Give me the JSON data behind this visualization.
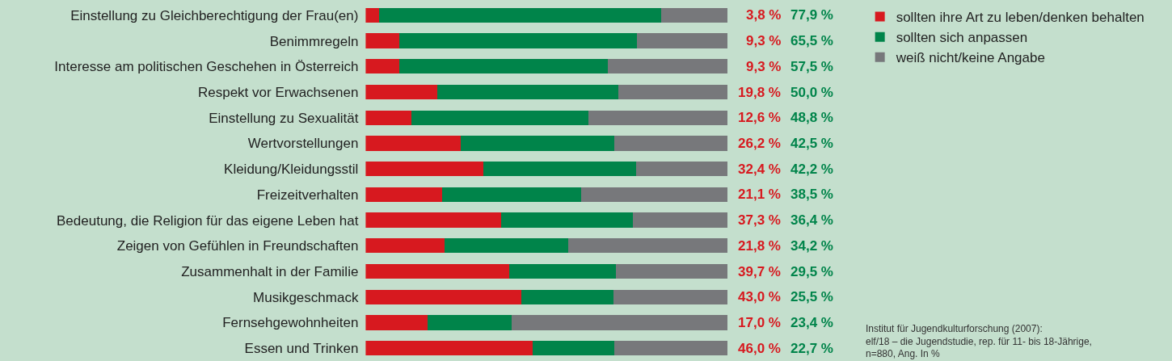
{
  "chart_data": {
    "type": "bar",
    "orientation": "horizontal",
    "stacked": true,
    "legend": "top right",
    "tick_labels": "y",
    "grid": false,
    "xlim": [
      0,
      100
    ],
    "categories": [
      "Einstellung zu Gleichberechtigung der Frau(en)",
      "Benimmregeln",
      "Interesse am politischen Geschehen in Österreich",
      "Respekt vor Erwachsenen",
      "Einstellung zu Sexualität",
      "Wertvorstellungen",
      "Kleidung/Kleidungsstil",
      "Freizeitverhalten",
      "Bedeutung, die Religion für das eigene Leben hat",
      "Zeigen von Gefühlen in Freundschaften",
      "Zusammenhalt in der Familie",
      "Musikgeschmack",
      "Fernsehgewohnheiten",
      "Essen und Trinken"
    ],
    "series": [
      {
        "name": "sollten ihre Art zu leben/denken behalten",
        "color": "#d7191f",
        "values": [
          3.8,
          9.3,
          9.3,
          19.8,
          12.6,
          26.2,
          32.4,
          21.1,
          37.3,
          21.8,
          39.7,
          43.0,
          17.0,
          46.0
        ],
        "value_labels": [
          "3,8 %",
          "9,3 %",
          "9,3 %",
          "19,8 %",
          "12,6 %",
          "26,2 %",
          "32,4 %",
          "21,1 %",
          "37,3 %",
          "21,8 %",
          "39,7 %",
          "43,0 %",
          "17,0 %",
          "46,0 %"
        ]
      },
      {
        "name": "sollten sich anpassen",
        "color": "#00844a",
        "values": [
          77.9,
          65.5,
          57.5,
          50.0,
          48.8,
          42.5,
          42.2,
          38.5,
          36.4,
          34.2,
          29.5,
          25.5,
          23.4,
          22.7
        ],
        "value_labels": [
          "77,9 %",
          "65,5 %",
          "57,5 %",
          "50,0 %",
          "48,8 %",
          "42,5 %",
          "42,2 %",
          "38,5 %",
          "36,4 %",
          "34,2 %",
          "29,5 %",
          "25,5 %",
          "23,4 %",
          "22,7 %"
        ]
      },
      {
        "name": "weiß nicht/keine Angabe",
        "color": "#77787b",
        "values": [
          18.3,
          25.2,
          33.2,
          30.2,
          38.6,
          31.3,
          25.4,
          40.4,
          26.3,
          44.0,
          30.8,
          31.5,
          59.6,
          31.3
        ]
      }
    ],
    "annotations": [
      "Institut für Jugendkulturforschung (2007):\nelf/18 – die Jugendstudie, rep. für 11- bis 18-Jährige,\nn=880, Ang. In %"
    ]
  }
}
